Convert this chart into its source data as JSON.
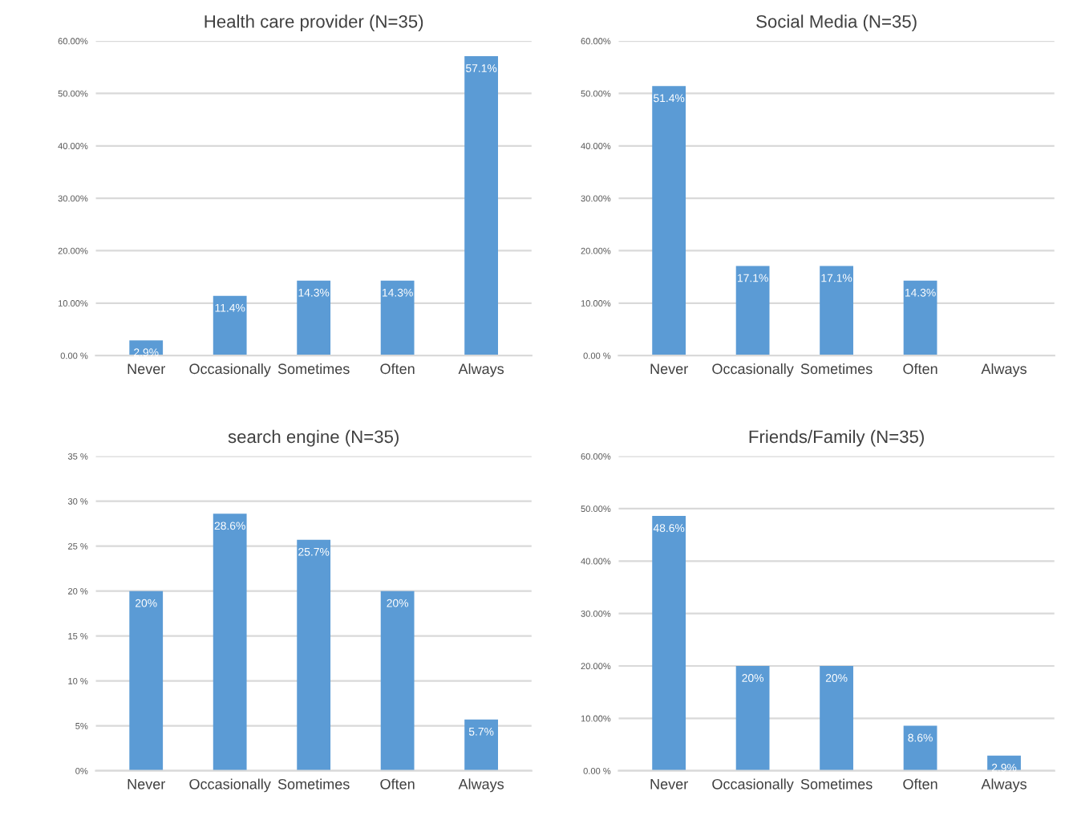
{
  "chart_data": [
    {
      "type": "bar",
      "title": "Health care provider (N=35)",
      "categories": [
        "Never",
        "Occasionally",
        "Sometimes",
        "Often",
        "Always"
      ],
      "values": [
        2.9,
        11.4,
        14.3,
        14.3,
        57.1
      ],
      "value_labels": [
        "2.9%",
        "11.4%",
        "14.3%",
        "14.3%",
        "57.1%"
      ],
      "color": "#5b9bd5",
      "ylim": [
        0,
        60
      ],
      "yticks": [
        {
          "value": 0,
          "label": "0.00 %"
        },
        {
          "value": 10,
          "label": "10.00%"
        },
        {
          "value": 20,
          "label": "20.00%"
        },
        {
          "value": 30,
          "label": "30.00%"
        },
        {
          "value": 40,
          "label": "40.00%"
        },
        {
          "value": 50,
          "label": "50.00%"
        },
        {
          "value": 60,
          "label": "60.00%"
        }
      ],
      "grid": "y"
    },
    {
      "type": "bar",
      "title": "Social Media (N=35)",
      "categories": [
        "Never",
        "Occasionally",
        "Sometimes",
        "Often",
        "Always"
      ],
      "values": [
        51.4,
        17.1,
        17.1,
        14.3,
        0
      ],
      "value_labels": [
        "51.4%",
        "17.1%",
        "17.1%",
        "14.3%",
        null
      ],
      "color": "#5b9bd5",
      "ylim": [
        0,
        60
      ],
      "yticks": [
        {
          "value": 0,
          "label": "0.00 %"
        },
        {
          "value": 10,
          "label": "10.00%"
        },
        {
          "value": 20,
          "label": "20.00%"
        },
        {
          "value": 30,
          "label": "30.00%"
        },
        {
          "value": 40,
          "label": "40.00%"
        },
        {
          "value": 50,
          "label": "50.00%"
        },
        {
          "value": 60,
          "label": "60.00%"
        }
      ],
      "grid": "y"
    },
    {
      "type": "bar",
      "title": "search engine (N=35)",
      "categories": [
        "Never",
        "Occasionally",
        "Sometimes",
        "Often",
        "Always"
      ],
      "values": [
        20,
        28.6,
        25.7,
        20,
        5.7
      ],
      "value_labels": [
        "20%",
        "28.6%",
        "25.7%",
        "20%",
        "5.7%"
      ],
      "color": "#5b9bd5",
      "ylim": [
        0,
        35
      ],
      "yticks": [
        {
          "value": 0,
          "label": "0%"
        },
        {
          "value": 5,
          "label": "5%"
        },
        {
          "value": 10,
          "label": "10 %"
        },
        {
          "value": 15,
          "label": "15 %"
        },
        {
          "value": 20,
          "label": "20 %"
        },
        {
          "value": 25,
          "label": "25 %"
        },
        {
          "value": 30,
          "label": "30 %"
        },
        {
          "value": 35,
          "label": "35 %"
        }
      ],
      "grid": "y"
    },
    {
      "type": "bar",
      "title": "Friends/Family (N=35)",
      "categories": [
        "Never",
        "Occasionally",
        "Sometimes",
        "Often",
        "Always"
      ],
      "values": [
        48.6,
        20,
        20,
        8.6,
        2.9
      ],
      "value_labels": [
        "48.6%",
        "20%",
        "20%",
        "8.6%",
        "2.9%"
      ],
      "color": "#5b9bd5",
      "ylim": [
        0,
        60
      ],
      "yticks": [
        {
          "value": 0,
          "label": "0.00 %"
        },
        {
          "value": 10,
          "label": "10.00%"
        },
        {
          "value": 20,
          "label": "20.00%"
        },
        {
          "value": 30,
          "label": "30.00%"
        },
        {
          "value": 40,
          "label": "40.00%"
        },
        {
          "value": 50,
          "label": "50.00%"
        },
        {
          "value": 60,
          "label": "60.00%"
        }
      ],
      "grid": "y"
    }
  ]
}
